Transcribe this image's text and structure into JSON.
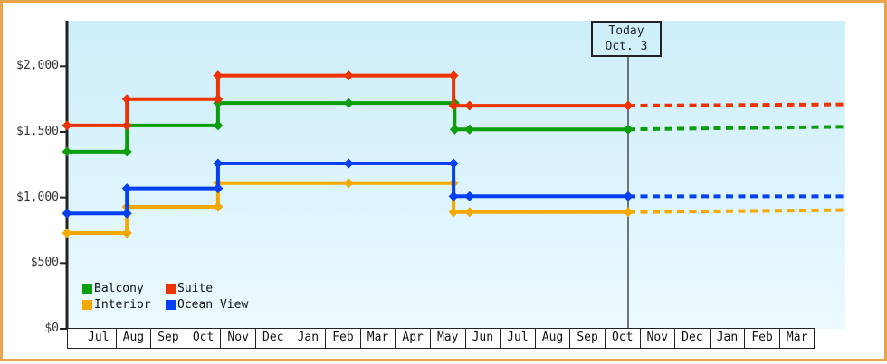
{
  "window": {
    "frame_border_color": "#e9a44e",
    "background": "#ffffff"
  },
  "today_box": {
    "line1": "Today",
    "line2": "Oct. 3"
  },
  "legend": [
    {
      "id": "balcony",
      "label": "Balcony",
      "color": "#0a9e0a"
    },
    {
      "id": "suite",
      "label": "Suite",
      "color": "#ee3300"
    },
    {
      "id": "interior",
      "label": "Interior",
      "color": "#f5a800"
    },
    {
      "id": "ocean-view",
      "label": "Ocean View",
      "color": "#0540f0"
    }
  ],
  "chart_data": {
    "type": "line",
    "subtype": "step-price-history",
    "title": "",
    "xlabel": "",
    "ylabel": "",
    "grid": false,
    "legend_position": "bottom-left-inside",
    "months": [
      "Jul",
      "Aug",
      "Sep",
      "Oct",
      "Nov",
      "Dec",
      "Jan",
      "Feb",
      "Mar",
      "Apr",
      "May",
      "Jun",
      "Jul",
      "Aug",
      "Sep",
      "Oct",
      "Nov",
      "Dec",
      "Jan",
      "Feb",
      "Mar"
    ],
    "y_ticks": [
      {
        "value": 2000,
        "label": "$2,000"
      },
      {
        "value": 1500,
        "label": "$1,500"
      },
      {
        "value": 1000,
        "label": "$1,000"
      },
      {
        "value": 500,
        "label": "$500"
      },
      {
        "value": 0,
        "label": "$0"
      }
    ],
    "ylim": [
      0,
      2345
    ],
    "xlim_months": [
      -0.39,
      21.02
    ],
    "today": {
      "x_months": 15.07,
      "label": "Today Oct. 3"
    },
    "projection_end_x_months": 21.02,
    "series": [
      {
        "id": "interior",
        "name": "Interior",
        "color": "#f5a800",
        "points": [
          {
            "x": -0.39,
            "v": 729
          },
          {
            "x": 1.26,
            "v": 729
          },
          {
            "x": 1.26,
            "v": 929
          },
          {
            "x": 3.77,
            "v": 929
          },
          {
            "x": 3.77,
            "v": 1109
          },
          {
            "x": 7.37,
            "v": 1109
          },
          {
            "x": 10.26,
            "v": 1109
          },
          {
            "x": 10.26,
            "v": 889
          },
          {
            "x": 10.7,
            "v": 889
          },
          {
            "x": 15.07,
            "v": 889
          }
        ],
        "projection_end_value": 904
      },
      {
        "id": "ocean-view",
        "name": "Ocean View",
        "color": "#0540f0",
        "points": [
          {
            "x": -0.39,
            "v": 879
          },
          {
            "x": 1.26,
            "v": 879
          },
          {
            "x": 1.26,
            "v": 1069
          },
          {
            "x": 3.77,
            "v": 1069
          },
          {
            "x": 3.77,
            "v": 1259
          },
          {
            "x": 7.37,
            "v": 1259
          },
          {
            "x": 10.26,
            "v": 1259
          },
          {
            "x": 10.26,
            "v": 1009
          },
          {
            "x": 10.7,
            "v": 1009
          },
          {
            "x": 15.07,
            "v": 1009
          }
        ],
        "projection_end_value": 1009
      },
      {
        "id": "balcony",
        "name": "Balcony",
        "color": "#0a9e0a",
        "points": [
          {
            "x": -0.39,
            "v": 1349
          },
          {
            "x": 1.26,
            "v": 1349
          },
          {
            "x": 1.26,
            "v": 1549
          },
          {
            "x": 3.77,
            "v": 1549
          },
          {
            "x": 3.77,
            "v": 1719
          },
          {
            "x": 7.37,
            "v": 1719
          },
          {
            "x": 10.29,
            "v": 1719
          },
          {
            "x": 10.29,
            "v": 1519
          },
          {
            "x": 10.7,
            "v": 1519
          },
          {
            "x": 15.07,
            "v": 1519
          }
        ],
        "projection_end_value": 1539
      },
      {
        "id": "suite",
        "name": "Suite",
        "color": "#ee3300",
        "points": [
          {
            "x": -0.39,
            "v": 1549
          },
          {
            "x": 1.26,
            "v": 1549
          },
          {
            "x": 1.26,
            "v": 1749
          },
          {
            "x": 3.77,
            "v": 1749
          },
          {
            "x": 3.77,
            "v": 1929
          },
          {
            "x": 7.37,
            "v": 1929
          },
          {
            "x": 10.26,
            "v": 1929
          },
          {
            "x": 10.26,
            "v": 1699
          },
          {
            "x": 10.7,
            "v": 1699
          },
          {
            "x": 15.07,
            "v": 1699
          }
        ],
        "projection_end_value": 1709
      }
    ]
  }
}
